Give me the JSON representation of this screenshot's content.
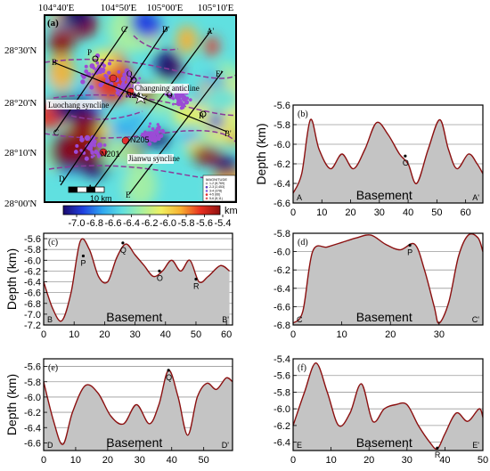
{
  "map": {
    "panel_label": "(a)",
    "lon_ticks": [
      "104°40'E",
      "104°50'E",
      "105°00'E",
      "105°10'E"
    ],
    "lat_ticks": [
      "28°30'N",
      "28°20'N",
      "28°10'N",
      "28°00'N"
    ],
    "features": [
      "Luochang syncline",
      "Changning anticline",
      "Jianwu syncline"
    ],
    "stations": [
      "N24",
      "N201",
      "N205"
    ],
    "profile_end_labels": [
      "A",
      "A'",
      "B",
      "B'",
      "C",
      "C'",
      "D",
      "D'",
      "E",
      "E'"
    ],
    "point_labels": [
      "O",
      "P",
      "Q",
      "R"
    ],
    "scale_bar_label": "10 km",
    "legend_title": "MAGNITUDE",
    "legend_items": [
      "1-2 (8,769)",
      "2-3 (2,453)",
      "3-4 (378)",
      "4-5 (66)",
      "5-6 (8,11)"
    ],
    "colorbar": {
      "ticks": [
        "-7.0",
        "-6.8",
        "-6.6",
        "-6.4",
        "-6.2",
        "-6.0",
        "-5.8",
        "-5.6",
        "-5.4"
      ],
      "unit": "km",
      "colors": [
        "#1b0a6e",
        "#2040e0",
        "#30a8f0",
        "#60e0e0",
        "#a8f0a0",
        "#f0f060",
        "#f8b030",
        "#e83020",
        "#901010"
      ]
    },
    "seismicity_color": "#9b4bd6",
    "fault_color": "#8a3a9a"
  },
  "chart_data": [
    {
      "type": "area",
      "panel": "(b)",
      "ylabel": "Depth (km)",
      "x": [
        0,
        3,
        6,
        9,
        13,
        17,
        21,
        25,
        29,
        33,
        37,
        40,
        43,
        47,
        51,
        54,
        57,
        61,
        64,
        66
      ],
      "y": [
        -6.5,
        -6.3,
        -5.75,
        -6.05,
        -6.25,
        -6.1,
        -6.25,
        -6.05,
        -5.78,
        -5.9,
        -6.1,
        -6.2,
        -6.4,
        -6.05,
        -5.75,
        -6.05,
        -6.25,
        -6.1,
        -6.2,
        -6.3
      ],
      "xlim": [
        0,
        66
      ],
      "ylim": [
        -6.6,
        -5.6
      ],
      "xticks": [
        "0",
        "10",
        "20",
        "30",
        "40",
        "50",
        "60"
      ],
      "yticks": [
        "-5.6",
        "-5.8",
        "-6.0",
        "-6.2",
        "-6.4",
        "-6.6"
      ],
      "end_labels": [
        "A",
        "A'"
      ],
      "base_label": "Basement",
      "points": [
        {
          "label": "O",
          "x": 39,
          "y": -6.12
        }
      ]
    },
    {
      "type": "area",
      "panel": "(c)",
      "ylabel": "Depth (km)",
      "x": [
        0,
        3,
        6,
        9,
        12,
        15,
        18,
        21,
        24,
        27,
        30,
        33,
        36,
        39,
        42,
        45,
        48,
        51,
        54,
        58,
        61
      ],
      "y": [
        -6.4,
        -6.9,
        -7.12,
        -6.6,
        -5.65,
        -5.8,
        -6.3,
        -6.4,
        -5.95,
        -5.7,
        -5.9,
        -6.1,
        -6.3,
        -6.2,
        -6.0,
        -6.2,
        -6.0,
        -6.4,
        -6.3,
        -6.1,
        -6.2
      ],
      "xlim": [
        0,
        62
      ],
      "ylim": [
        -7.2,
        -5.5
      ],
      "xticks": [
        "0",
        "10",
        "20",
        "30",
        "40",
        "50",
        "60"
      ],
      "yticks": [
        "-5.6",
        "-5.8",
        "-6.0",
        "-6.2",
        "-6.4",
        "-6.6",
        "-6.8",
        "-7.0",
        "-7.2"
      ],
      "end_labels": [
        "B",
        "B'"
      ],
      "base_label": "Basement",
      "points": [
        {
          "label": "P",
          "x": 13,
          "y": -5.92
        },
        {
          "label": "Q",
          "x": 26,
          "y": -5.68
        },
        {
          "label": "O",
          "x": 38,
          "y": -6.2
        },
        {
          "label": "R",
          "x": 50,
          "y": -6.35
        }
      ]
    },
    {
      "type": "area",
      "panel": "(d)",
      "ylabel": "",
      "x": [
        0,
        2,
        4,
        7,
        10,
        13,
        16,
        19,
        22,
        25,
        27,
        29,
        30,
        32,
        34,
        36,
        38,
        39
      ],
      "y": [
        -6.78,
        -6.65,
        -6.0,
        -5.95,
        -5.9,
        -5.85,
        -5.82,
        -5.92,
        -5.98,
        -5.92,
        -6.2,
        -6.6,
        -6.78,
        -6.55,
        -6.05,
        -5.82,
        -5.85,
        -6.0
      ],
      "xlim": [
        0,
        39
      ],
      "ylim": [
        -6.8,
        -5.8
      ],
      "xticks": [
        "0",
        "10",
        "20",
        "30"
      ],
      "yticks": [
        "-5.8",
        "-6.0",
        "-6.2",
        "-6.4",
        "-6.6",
        "-6.8"
      ],
      "end_labels": [
        "C",
        "C'"
      ],
      "base_label": "Basement",
      "points": [
        {
          "label": "P",
          "x": 24,
          "y": -5.93
        }
      ]
    },
    {
      "type": "area",
      "panel": "(e)",
      "ylabel": "Depth (km)",
      "x": [
        0,
        3,
        6,
        9,
        13,
        17,
        21,
        25,
        29,
        33,
        36,
        39,
        42,
        45,
        48,
        51,
        54,
        57,
        59
      ],
      "y": [
        -5.8,
        -6.3,
        -6.62,
        -6.2,
        -5.85,
        -5.95,
        -6.25,
        -6.35,
        -6.1,
        -6.35,
        -6.1,
        -5.65,
        -6.0,
        -6.5,
        -6.0,
        -5.82,
        -5.9,
        -5.75,
        -5.8
      ],
      "xlim": [
        0,
        59
      ],
      "ylim": [
        -6.7,
        -5.5
      ],
      "xticks": [
        "0",
        "10",
        "20",
        "30",
        "40",
        "50"
      ],
      "yticks": [
        "-5.6",
        "-5.8",
        "-6.0",
        "-6.2",
        "-6.4",
        "-6.6"
      ],
      "end_labels": [
        "D",
        "D'"
      ],
      "base_label": "Basement",
      "points": [
        {
          "label": "Q",
          "x": 39,
          "y": -5.65
        }
      ]
    },
    {
      "type": "area",
      "panel": "(f)",
      "ylabel": "",
      "x": [
        0,
        3,
        6,
        9,
        12,
        15,
        18,
        21,
        24,
        27,
        30,
        33,
        36,
        38,
        40,
        43,
        46,
        49,
        50
      ],
      "y": [
        -6.2,
        -5.8,
        -5.45,
        -5.8,
        -6.2,
        -6.05,
        -5.7,
        -6.15,
        -6.0,
        -5.95,
        -5.95,
        -6.2,
        -6.4,
        -6.48,
        -6.3,
        -6.05,
        -6.15,
        -6.0,
        -6.1
      ],
      "xlim": [
        0,
        50
      ],
      "ylim": [
        -6.5,
        -5.4
      ],
      "xticks": [
        "0",
        "10",
        "20",
        "30",
        "40",
        "50"
      ],
      "yticks": [
        "-5.4",
        "-5.6",
        "-5.8",
        "-6.0",
        "-6.2",
        "-6.4"
      ],
      "end_labels": [
        "E",
        "E'"
      ],
      "base_label": "Basement",
      "points": [
        {
          "label": "R",
          "x": 38,
          "y": -6.47
        }
      ]
    }
  ]
}
